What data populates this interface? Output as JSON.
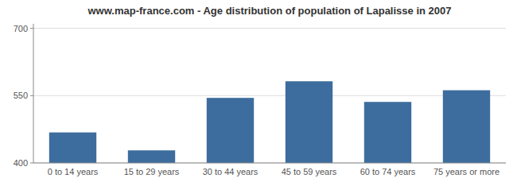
{
  "chart_data": {
    "type": "bar",
    "title": "www.map-france.com - Age distribution of population of Lapalisse in 2007",
    "categories": [
      "0 to 14 years",
      "15 to 29 years",
      "30 to 44 years",
      "45 to 59 years",
      "60 to 74 years",
      "75 years or more"
    ],
    "values": [
      468,
      428,
      545,
      582,
      536,
      562
    ],
    "color": "#3d6d9e",
    "ylim": [
      400,
      710
    ],
    "yticks": [
      400,
      550,
      700
    ],
    "grid": true
  }
}
